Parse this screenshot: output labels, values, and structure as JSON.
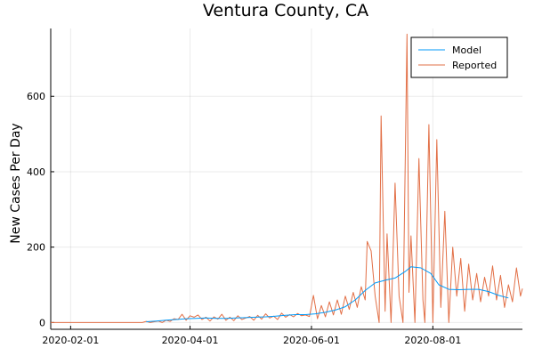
{
  "chart_data": {
    "type": "line",
    "title": "Ventura County, CA",
    "xlabel": "",
    "ylabel": "New Cases Per Day",
    "x_ticks": [
      "2020-02-01",
      "2020-04-01",
      "2020-06-01",
      "2020-08-01"
    ],
    "y_ticks": [
      0,
      200,
      400,
      600
    ],
    "xlim": [
      "2020-01-22",
      "2020-09-15"
    ],
    "ylim": [
      -18,
      780
    ],
    "grid": true,
    "legend": "top-right",
    "series": [
      {
        "name": "Model",
        "color": "#009af9",
        "points": [
          [
            "2020-03-10",
            2
          ],
          [
            "2020-03-15",
            4
          ],
          [
            "2020-03-20",
            6
          ],
          [
            "2020-03-25",
            8
          ],
          [
            "2020-03-30",
            10
          ],
          [
            "2020-04-04",
            11
          ],
          [
            "2020-04-09",
            12
          ],
          [
            "2020-04-14",
            11
          ],
          [
            "2020-04-19",
            11
          ],
          [
            "2020-04-24",
            12
          ],
          [
            "2020-04-29",
            13
          ],
          [
            "2020-05-04",
            14
          ],
          [
            "2020-05-09",
            15
          ],
          [
            "2020-05-14",
            17
          ],
          [
            "2020-05-19",
            19
          ],
          [
            "2020-05-24",
            21
          ],
          [
            "2020-05-29",
            21
          ],
          [
            "2020-06-03",
            23
          ],
          [
            "2020-06-08",
            27
          ],
          [
            "2020-06-13",
            33
          ],
          [
            "2020-06-18",
            42
          ],
          [
            "2020-06-23",
            60
          ],
          [
            "2020-06-28",
            85
          ],
          [
            "2020-07-03",
            105
          ],
          [
            "2020-07-08",
            112
          ],
          [
            "2020-07-13",
            118
          ],
          [
            "2020-07-18",
            135
          ],
          [
            "2020-07-21",
            148
          ],
          [
            "2020-07-26",
            145
          ],
          [
            "2020-07-31",
            130
          ],
          [
            "2020-08-04",
            100
          ],
          [
            "2020-08-09",
            88
          ],
          [
            "2020-08-14",
            87
          ],
          [
            "2020-08-19",
            88
          ],
          [
            "2020-08-24",
            88
          ],
          [
            "2020-08-29",
            82
          ],
          [
            "2020-09-03",
            72
          ],
          [
            "2020-09-08",
            65
          ]
        ]
      },
      {
        "name": "Reported",
        "color": "#e26f46",
        "points": [
          [
            "2020-01-22",
            0
          ],
          [
            "2020-03-01",
            0
          ],
          [
            "2020-03-08",
            0
          ],
          [
            "2020-03-10",
            3
          ],
          [
            "2020-03-12",
            0
          ],
          [
            "2020-03-14",
            2
          ],
          [
            "2020-03-16",
            4
          ],
          [
            "2020-03-18",
            0
          ],
          [
            "2020-03-20",
            6
          ],
          [
            "2020-03-22",
            3
          ],
          [
            "2020-03-24",
            10
          ],
          [
            "2020-03-26",
            8
          ],
          [
            "2020-03-28",
            22
          ],
          [
            "2020-03-30",
            6
          ],
          [
            "2020-04-01",
            18
          ],
          [
            "2020-04-03",
            14
          ],
          [
            "2020-04-05",
            20
          ],
          [
            "2020-04-07",
            8
          ],
          [
            "2020-04-09",
            14
          ],
          [
            "2020-04-11",
            4
          ],
          [
            "2020-04-13",
            15
          ],
          [
            "2020-04-15",
            9
          ],
          [
            "2020-04-17",
            22
          ],
          [
            "2020-04-19",
            6
          ],
          [
            "2020-04-21",
            14
          ],
          [
            "2020-04-23",
            5
          ],
          [
            "2020-04-25",
            18
          ],
          [
            "2020-04-27",
            8
          ],
          [
            "2020-04-29",
            12
          ],
          [
            "2020-05-01",
            16
          ],
          [
            "2020-05-03",
            6
          ],
          [
            "2020-05-05",
            19
          ],
          [
            "2020-05-07",
            9
          ],
          [
            "2020-05-09",
            23
          ],
          [
            "2020-05-11",
            12
          ],
          [
            "2020-05-13",
            17
          ],
          [
            "2020-05-15",
            8
          ],
          [
            "2020-05-17",
            25
          ],
          [
            "2020-05-19",
            14
          ],
          [
            "2020-05-21",
            21
          ],
          [
            "2020-05-23",
            15
          ],
          [
            "2020-05-25",
            24
          ],
          [
            "2020-05-27",
            18
          ],
          [
            "2020-05-29",
            20
          ],
          [
            "2020-05-31",
            16
          ],
          [
            "2020-06-02",
            72
          ],
          [
            "2020-06-04",
            10
          ],
          [
            "2020-06-06",
            45
          ],
          [
            "2020-06-08",
            15
          ],
          [
            "2020-06-10",
            55
          ],
          [
            "2020-06-12",
            20
          ],
          [
            "2020-06-14",
            60
          ],
          [
            "2020-06-16",
            22
          ],
          [
            "2020-06-18",
            70
          ],
          [
            "2020-06-20",
            35
          ],
          [
            "2020-06-22",
            80
          ],
          [
            "2020-06-24",
            40
          ],
          [
            "2020-06-26",
            95
          ],
          [
            "2020-06-28",
            60
          ],
          [
            "2020-06-29",
            215
          ],
          [
            "2020-07-01",
            190
          ],
          [
            "2020-07-03",
            70
          ],
          [
            "2020-07-05",
            0
          ],
          [
            "2020-07-06",
            548
          ],
          [
            "2020-07-08",
            30
          ],
          [
            "2020-07-09",
            235
          ],
          [
            "2020-07-11",
            0
          ],
          [
            "2020-07-13",
            370
          ],
          [
            "2020-07-15",
            70
          ],
          [
            "2020-07-17",
            0
          ],
          [
            "2020-07-19",
            765
          ],
          [
            "2020-07-20",
            80
          ],
          [
            "2020-07-21",
            230
          ],
          [
            "2020-07-23",
            0
          ],
          [
            "2020-07-25",
            435
          ],
          [
            "2020-07-27",
            60
          ],
          [
            "2020-07-28",
            0
          ],
          [
            "2020-07-30",
            525
          ],
          [
            "2020-08-01",
            0
          ],
          [
            "2020-08-03",
            485
          ],
          [
            "2020-08-05",
            40
          ],
          [
            "2020-08-07",
            295
          ],
          [
            "2020-08-09",
            0
          ],
          [
            "2020-08-11",
            200
          ],
          [
            "2020-08-13",
            70
          ],
          [
            "2020-08-15",
            170
          ],
          [
            "2020-08-17",
            30
          ],
          [
            "2020-08-19",
            155
          ],
          [
            "2020-08-21",
            60
          ],
          [
            "2020-08-23",
            130
          ],
          [
            "2020-08-25",
            55
          ],
          [
            "2020-08-27",
            120
          ],
          [
            "2020-08-29",
            70
          ],
          [
            "2020-08-31",
            150
          ],
          [
            "2020-09-02",
            60
          ],
          [
            "2020-09-04",
            125
          ],
          [
            "2020-09-06",
            40
          ],
          [
            "2020-09-08",
            100
          ],
          [
            "2020-09-10",
            55
          ],
          [
            "2020-09-12",
            145
          ],
          [
            "2020-09-14",
            70
          ],
          [
            "2020-09-15",
            90
          ]
        ]
      }
    ]
  }
}
